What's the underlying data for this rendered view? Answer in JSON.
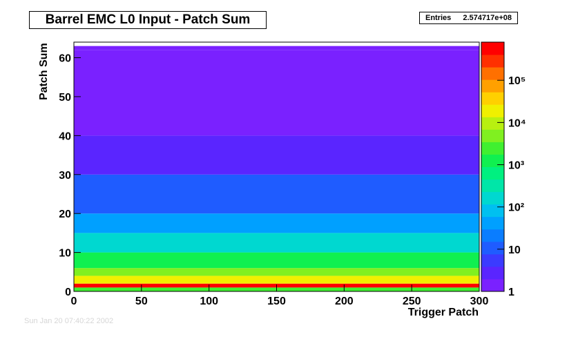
{
  "chart_data": {
    "type": "heatmap",
    "title": "Barrel EMC L0 Input - Patch Sum",
    "xlabel": "Trigger Patch",
    "ylabel": "Patch Sum",
    "xlim": [
      0,
      300
    ],
    "ylim": [
      0,
      64
    ],
    "x_ticks": [
      "0",
      "50",
      "100",
      "150",
      "200",
      "250",
      "300"
    ],
    "x_tick_values": [
      0,
      50,
      100,
      150,
      200,
      250,
      300
    ],
    "y_ticks": [
      "0",
      "10",
      "20",
      "30",
      "40",
      "50",
      "60"
    ],
    "y_tick_values": [
      0,
      10,
      20,
      30,
      40,
      50,
      60
    ],
    "z_scale": "log",
    "zlim": [
      1,
      800000
    ],
    "z_ticks": [
      "1",
      "10",
      "10²",
      "10³",
      "10⁴",
      "10⁵"
    ],
    "z_tick_values": [
      1,
      10,
      100,
      1000,
      10000,
      100000
    ],
    "entries_label": "Entries",
    "entries_value": "2.574717e+08",
    "color_palette": [
      "#7a21ff",
      "#5a25ff",
      "#3b3bff",
      "#1f5cff",
      "#0a7dff",
      "#00a0ff",
      "#00c0f0",
      "#00d8d0",
      "#00e6a8",
      "#00f080",
      "#10f050",
      "#40f030",
      "#80f020",
      "#b8f010",
      "#f0f000",
      "#ffd000",
      "#ffa000",
      "#ff7000",
      "#ff3000",
      "#ff0000"
    ],
    "approx_profile": [
      {
        "y_range": [
          0,
          1
        ],
        "value": 3000
      },
      {
        "y_range": [
          1,
          2
        ],
        "value": 500000
      },
      {
        "y_range": [
          2,
          4
        ],
        "value": 20000
      },
      {
        "y_range": [
          4,
          6
        ],
        "value": 5000
      },
      {
        "y_range": [
          6,
          10
        ],
        "value": 1000
      },
      {
        "y_range": [
          10,
          15
        ],
        "value": 200
      },
      {
        "y_range": [
          15,
          20
        ],
        "value": 50
      },
      {
        "y_range": [
          20,
          30
        ],
        "value": 10
      },
      {
        "y_range": [
          30,
          40
        ],
        "value": 3
      },
      {
        "y_range": [
          40,
          62
        ],
        "value": 1
      },
      {
        "y_range": [
          62,
          63
        ],
        "value": 1
      }
    ]
  },
  "footer": {
    "timestamp": "Sun Jan 20 07:40:22 2002"
  }
}
